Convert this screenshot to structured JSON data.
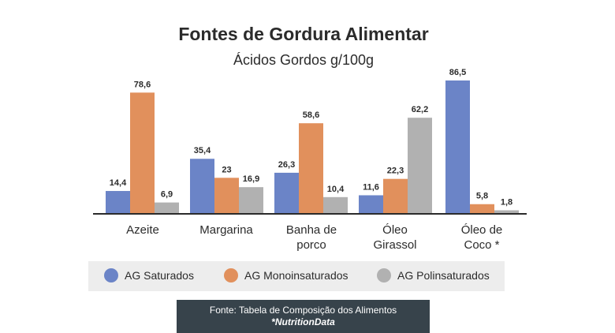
{
  "colors": {
    "saturados": "#6b84c7",
    "mono": "#e1905c",
    "poli": "#b1b1b1",
    "text": "#2b2b2b",
    "source_bg": "#37434b"
  },
  "chart_data": {
    "type": "bar",
    "title": "Fontes de Gordura Alimentar",
    "subtitle": "Ácidos Gordos g/100g",
    "categories": [
      [
        "Azeite"
      ],
      [
        "Margarina"
      ],
      [
        "Banha de",
        "porco"
      ],
      [
        "Óleo",
        "Girassol"
      ],
      [
        "Óleo de",
        "Coco *"
      ]
    ],
    "series": [
      {
        "name": "AG Saturados",
        "values": [
          14.4,
          35.4,
          26.3,
          11.6,
          86.5
        ],
        "labels": [
          "14,4",
          "35,4",
          "26,3",
          "11,6",
          "86,5"
        ]
      },
      {
        "name": "AG Monoinsaturados",
        "values": [
          78.6,
          23,
          58.6,
          22.3,
          5.8
        ],
        "labels": [
          "78,6",
          "23",
          "58,6",
          "22,3",
          "5,8"
        ]
      },
      {
        "name": "AG Polinsaturados",
        "values": [
          6.9,
          16.9,
          10.4,
          62.2,
          1.8
        ],
        "labels": [
          "6,9",
          "16,9",
          "10,4",
          "62,2",
          "1,8"
        ]
      }
    ],
    "ylim": [
      0,
      86.5
    ],
    "legend_position": "bottom",
    "grid": false
  },
  "source": {
    "line1": "Fonte: Tabela de Composição dos Alimentos",
    "line2": "*NutritionData"
  }
}
